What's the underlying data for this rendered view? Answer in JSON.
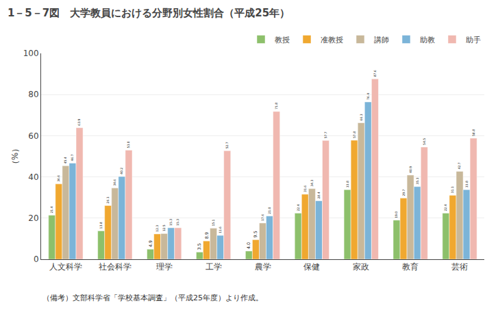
{
  "chart_data": {
    "type": "bar",
    "title": "1－5－7図　大学教員における分野別女性割合（平成25年）",
    "ylabel": "（%）",
    "annotations": [
      "（備考）文部科学省「学校基本調査」（平成25年度）より作成。"
    ],
    "categories": [
      "人文科学",
      "社会科学",
      "理学",
      "工学",
      "農学",
      "保健",
      "家政",
      "教育",
      "芸術"
    ],
    "series": [
      {
        "name": "教授",
        "color": "#8dc06b",
        "values": [
          21.4,
          13.8,
          4.9,
          3.5,
          4.0,
          22.4,
          33.8,
          19.0,
          22.4
        ],
        "value_labels": [
          "21.4",
          "13.8",
          "4.9",
          "3.5",
          "4.0",
          "22.4",
          "33.8",
          "19.0",
          "22.4"
        ]
      },
      {
        "name": "准教授",
        "color": "#f0a830",
        "values": [
          36.6,
          26.1,
          12.3,
          8.9,
          9.5,
          31.6,
          57.8,
          29.7,
          31.1
        ],
        "value_labels": [
          "36.6",
          "26.1",
          "12.3",
          "8.9",
          "9.5",
          "31.6",
          "57.8",
          "29.7",
          "31.1"
        ]
      },
      {
        "name": "講師",
        "color": "#c8b89a",
        "values": [
          45.4,
          34.6,
          12.5,
          15.1,
          17.6,
          34.3,
          66.3,
          40.9,
          42.7
        ],
        "value_labels": [
          "45.4",
          "34.6",
          "12.5",
          "15.1",
          "17.6",
          "34.3",
          "66.3",
          "40.9",
          "42.7"
        ]
      },
      {
        "name": "助教",
        "color": "#7bb4d8",
        "values": [
          46.7,
          40.2,
          15.3,
          11.6,
          21.0,
          28.4,
          76.4,
          35.3,
          33.8
        ],
        "value_labels": [
          "46.7",
          "40.2",
          "15.3",
          "11.6",
          "21.0",
          "28.4",
          "76.4",
          "35.3",
          "33.8"
        ]
      },
      {
        "name": "助手",
        "color": "#f0b8b0",
        "values": [
          63.9,
          53.0,
          15.3,
          52.7,
          71.8,
          57.7,
          87.6,
          54.5,
          58.8
        ],
        "value_labels": [
          "63.9",
          "53.0",
          "15.3",
          "52.7",
          "71.8",
          "57.7",
          "87.6",
          "54.5",
          "58.8"
        ]
      }
    ],
    "ylim": [
      0,
      100
    ],
    "yticks": [
      0,
      20,
      40,
      60,
      80,
      100
    ],
    "grid": true,
    "legend": "upper right",
    "data_labels": true
  }
}
